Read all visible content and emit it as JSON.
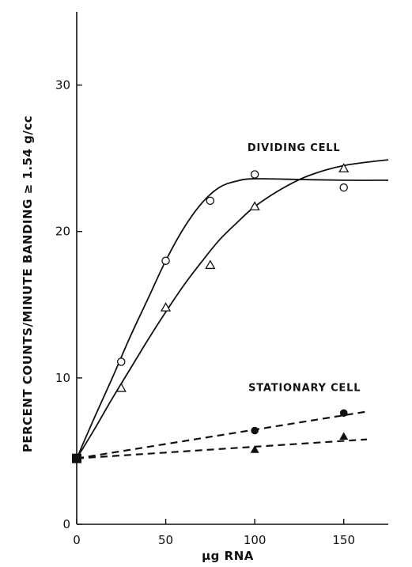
{
  "chart_data": {
    "type": "scatter",
    "xlabel": "μg RNA",
    "ylabel": "PERCENT COUNTS/MINUTE BANDING ≥ 1.54 g/cc",
    "xlim": [
      0,
      175
    ],
    "ylim": [
      0,
      35
    ],
    "x_ticks": [
      0,
      50,
      100,
      150
    ],
    "y_ticks": [
      0,
      10,
      20,
      30
    ],
    "grid": false,
    "annotations": [
      {
        "text": "DIVIDING CELL",
        "x": 122,
        "y": 25.5
      },
      {
        "text": "STATIONARY CELL",
        "x": 128,
        "y": 9.1
      }
    ],
    "series": [
      {
        "marker": "open-circle",
        "line": "solid",
        "points": [
          [
            0,
            4.5
          ],
          [
            25,
            11.1
          ],
          [
            50,
            18.0
          ],
          [
            75,
            22.1
          ],
          [
            100,
            23.9
          ],
          [
            150,
            23.0
          ]
        ],
        "curve": [
          [
            0,
            4.5
          ],
          [
            10,
            7.3
          ],
          [
            20,
            10.0
          ],
          [
            30,
            12.8
          ],
          [
            40,
            15.4
          ],
          [
            50,
            18.0
          ],
          [
            60,
            20.2
          ],
          [
            70,
            21.9
          ],
          [
            80,
            23.0
          ],
          [
            90,
            23.45
          ],
          [
            100,
            23.6
          ],
          [
            125,
            23.55
          ],
          [
            150,
            23.5
          ],
          [
            175,
            23.5
          ]
        ]
      },
      {
        "marker": "open-triangle",
        "line": "solid",
        "points": [
          [
            0,
            4.5
          ],
          [
            25,
            9.3
          ],
          [
            50,
            14.8
          ],
          [
            75,
            17.7
          ],
          [
            100,
            21.7
          ],
          [
            150,
            24.3
          ]
        ],
        "curve": [
          [
            0,
            4.5
          ],
          [
            10,
            6.5
          ],
          [
            20,
            8.6
          ],
          [
            30,
            10.6
          ],
          [
            40,
            12.6
          ],
          [
            50,
            14.5
          ],
          [
            60,
            16.3
          ],
          [
            70,
            17.9
          ],
          [
            80,
            19.4
          ],
          [
            90,
            20.6
          ],
          [
            100,
            21.7
          ],
          [
            115,
            22.9
          ],
          [
            130,
            23.8
          ],
          [
            150,
            24.5
          ],
          [
            175,
            24.9
          ]
        ]
      },
      {
        "marker": "filled-circle",
        "line": "dashed",
        "points": [
          [
            0,
            4.5
          ],
          [
            100,
            6.4
          ],
          [
            150,
            7.6
          ]
        ],
        "curve": [
          [
            0,
            4.5
          ],
          [
            163,
            7.7
          ]
        ]
      },
      {
        "marker": "filled-triangle",
        "line": "dashed",
        "points": [
          [
            0,
            4.5
          ],
          [
            100,
            5.1
          ],
          [
            150,
            6.0
          ]
        ],
        "curve": [
          [
            0,
            4.5
          ],
          [
            163,
            5.8
          ]
        ]
      }
    ]
  }
}
